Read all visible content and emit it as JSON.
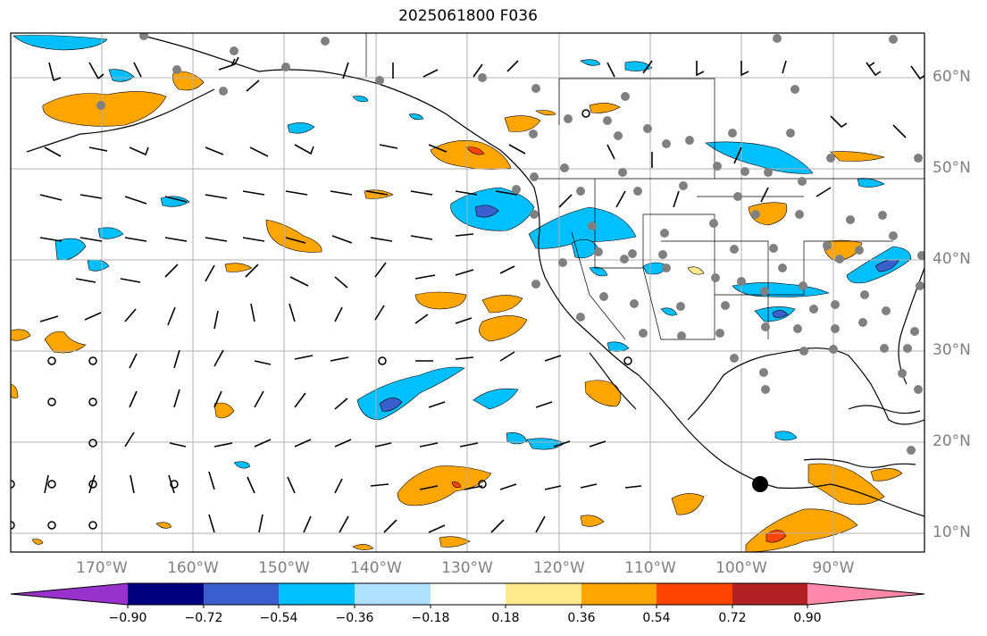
{
  "title": "2025061800 F036",
  "lon_labels": [
    "170°W",
    "160°W",
    "150°W",
    "140°W",
    "130°W",
    "120°W",
    "110°W",
    "100°W",
    "90°W"
  ],
  "lat_labels": [
    "60°N",
    "50°N",
    "40°N",
    "30°N",
    "20°N",
    "10°N"
  ],
  "colorbar": {
    "ticks": [
      "−0.90",
      "−0.72",
      "−0.54",
      "−0.36",
      "−0.18",
      "0.18",
      "0.36",
      "0.54",
      "0.72",
      "0.90"
    ],
    "colors": [
      "#9932cc",
      "#000080",
      "#3a5fcd",
      "#00bfff",
      "#aee0ff",
      "#ffffff",
      "#ffe98a",
      "#ffa500",
      "#ff4500",
      "#b22222",
      "#ff88aa"
    ]
  },
  "map_extent": {
    "lon_min": -180,
    "lon_max": -80,
    "lat_min": 8,
    "lat_max": 65
  },
  "colors": {
    "neg_light": "#aee0ff",
    "neg": "#00bfff",
    "neg_mid": "#3a5fcd",
    "pos_light": "#ffe98a",
    "pos": "#ffa500",
    "pos_strong": "#ff4500",
    "pos_max": "#b22222",
    "station": "#808080",
    "gridline": "#b0b0b0",
    "label": "#808080"
  }
}
